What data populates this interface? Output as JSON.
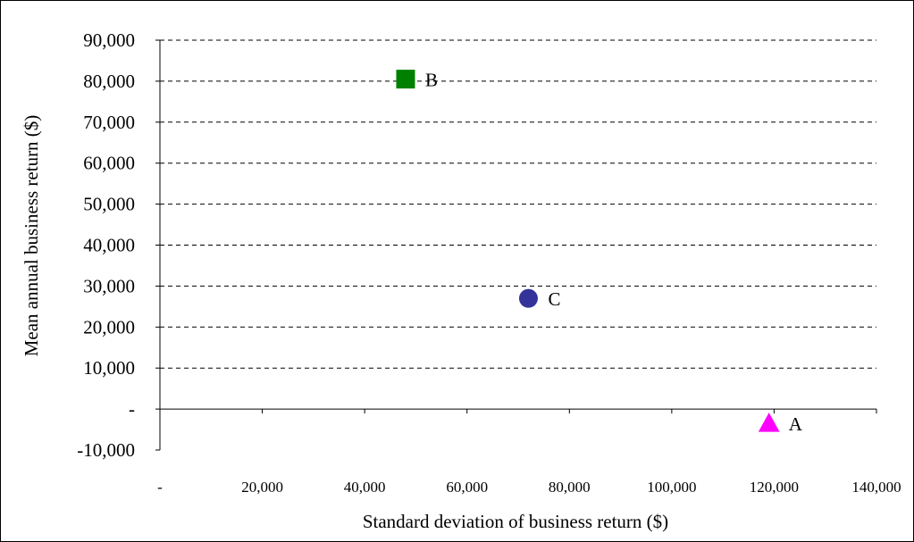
{
  "chart_data": {
    "type": "scatter",
    "xlabel": "Standard deviation of business return ($)",
    "ylabel": "Mean annual business return ($)",
    "xlim": [
      0,
      140000
    ],
    "ylim": [
      -10000,
      90000
    ],
    "x_ticks": [
      {
        "value": 0,
        "label": "-"
      },
      {
        "value": 20000,
        "label": "20,000"
      },
      {
        "value": 40000,
        "label": "40,000"
      },
      {
        "value": 60000,
        "label": "60,000"
      },
      {
        "value": 80000,
        "label": "80,000"
      },
      {
        "value": 100000,
        "label": "100,000"
      },
      {
        "value": 120000,
        "label": "120,000"
      },
      {
        "value": 140000,
        "label": "140,000"
      }
    ],
    "y_ticks": [
      {
        "value": -10000,
        "label": "-10,000"
      },
      {
        "value": 0,
        "label": "-"
      },
      {
        "value": 10000,
        "label": "10,000"
      },
      {
        "value": 20000,
        "label": "20,000"
      },
      {
        "value": 30000,
        "label": "30,000"
      },
      {
        "value": 40000,
        "label": "40,000"
      },
      {
        "value": 50000,
        "label": "50,000"
      },
      {
        "value": 60000,
        "label": "60,000"
      },
      {
        "value": 70000,
        "label": "70,000"
      },
      {
        "value": 80000,
        "label": "80,000"
      },
      {
        "value": 90000,
        "label": "90,000"
      }
    ],
    "grid": "horizontal-dashed",
    "legend": "none",
    "points": [
      {
        "label": "A",
        "x": 119000,
        "y": -3500,
        "marker": "triangle",
        "color": "#ff00ff"
      },
      {
        "label": "B",
        "x": 48000,
        "y": 80500,
        "marker": "square",
        "color": "#008000"
      },
      {
        "label": "C",
        "x": 72000,
        "y": 27000,
        "marker": "circle",
        "color": "#333399"
      }
    ]
  }
}
